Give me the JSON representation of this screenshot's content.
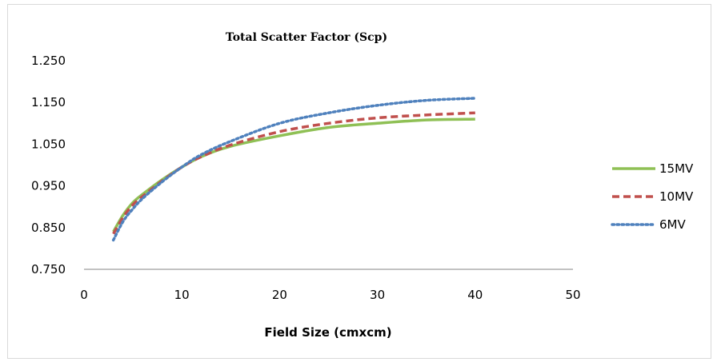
{
  "chart_data": {
    "type": "line",
    "title": "Total Scatter Factor (Scp)",
    "xlabel": "Field Size (cmxcm)",
    "ylabel": "",
    "xlim": [
      0,
      50
    ],
    "ylim": [
      0.75,
      1.25
    ],
    "xticks": [
      "0",
      "10",
      "20",
      "30",
      "40",
      "50"
    ],
    "yticks": [
      "0.750",
      "0.850",
      "0.950",
      "1.050",
      "1.150",
      "1.250"
    ],
    "grid": false,
    "legend_position": "right",
    "series": [
      {
        "name": "15MV",
        "color": "#8fc055",
        "style": "solid",
        "x": [
          3,
          4,
          5,
          6,
          8,
          10,
          12,
          15,
          20,
          25,
          30,
          35,
          40
        ],
        "y": [
          0.84,
          0.88,
          0.91,
          0.93,
          0.965,
          0.995,
          1.02,
          1.045,
          1.07,
          1.09,
          1.1,
          1.108,
          1.11
        ]
      },
      {
        "name": "10MV",
        "color": "#c0504d",
        "style": "dashed",
        "x": [
          3,
          4,
          5,
          6,
          8,
          10,
          12,
          15,
          20,
          25,
          30,
          35,
          40
        ],
        "y": [
          0.835,
          0.875,
          0.905,
          0.925,
          0.962,
          0.995,
          1.02,
          1.048,
          1.08,
          1.1,
          1.113,
          1.12,
          1.125
        ]
      },
      {
        "name": "6MV",
        "color": "#4f81bd",
        "style": "dotted",
        "x": [
          3,
          4,
          5,
          6,
          8,
          10,
          12,
          15,
          20,
          25,
          30,
          35,
          40
        ],
        "y": [
          0.82,
          0.865,
          0.895,
          0.92,
          0.96,
          0.995,
          1.025,
          1.057,
          1.1,
          1.125,
          1.143,
          1.155,
          1.16
        ]
      }
    ]
  }
}
